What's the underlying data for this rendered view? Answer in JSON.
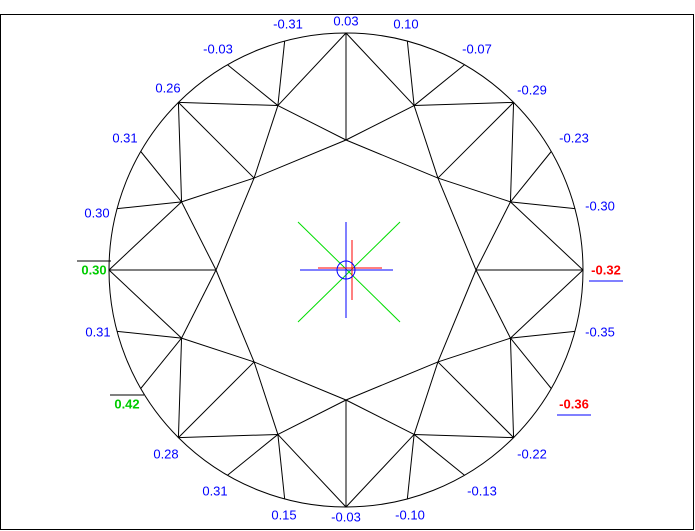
{
  "labels": [
    {
      "text": "0.03",
      "color": "#0000ff"
    },
    {
      "text": "0.10",
      "color": "#0000ff"
    },
    {
      "text": "-0.07",
      "color": "#0000ff"
    },
    {
      "text": "-0.29",
      "color": "#0000ff"
    },
    {
      "text": "-0.23",
      "color": "#0000ff"
    },
    {
      "text": "-0.30",
      "color": "#0000ff"
    },
    {
      "text": "-0.32",
      "color": "#ff0000",
      "emphasis": "underline"
    },
    {
      "text": "-0.35",
      "color": "#0000ff"
    },
    {
      "text": "-0.36",
      "color": "#ff0000",
      "emphasis": "underline"
    },
    {
      "text": "-0.22",
      "color": "#0000ff"
    },
    {
      "text": "-0.13",
      "color": "#0000ff"
    },
    {
      "text": "-0.10",
      "color": "#0000ff"
    },
    {
      "text": "-0.03",
      "color": "#0000ff"
    },
    {
      "text": "0.15",
      "color": "#0000ff"
    },
    {
      "text": "0.31",
      "color": "#0000ff"
    },
    {
      "text": "0.28",
      "color": "#0000ff"
    },
    {
      "text": "0.42",
      "color": "#00cc00",
      "emphasis": "overline"
    },
    {
      "text": "0.31",
      "color": "#0000ff"
    },
    {
      "text": "0.30",
      "color": "#00cc00",
      "emphasis": "overline"
    },
    {
      "text": "0.30",
      "color": "#0000ff"
    },
    {
      "text": "0.31",
      "color": "#0000ff"
    },
    {
      "text": "0.26",
      "color": "#0000ff"
    },
    {
      "text": "-0.03",
      "color": "#0000ff"
    },
    {
      "text": "-0.31",
      "color": "#0000ff"
    }
  ]
}
